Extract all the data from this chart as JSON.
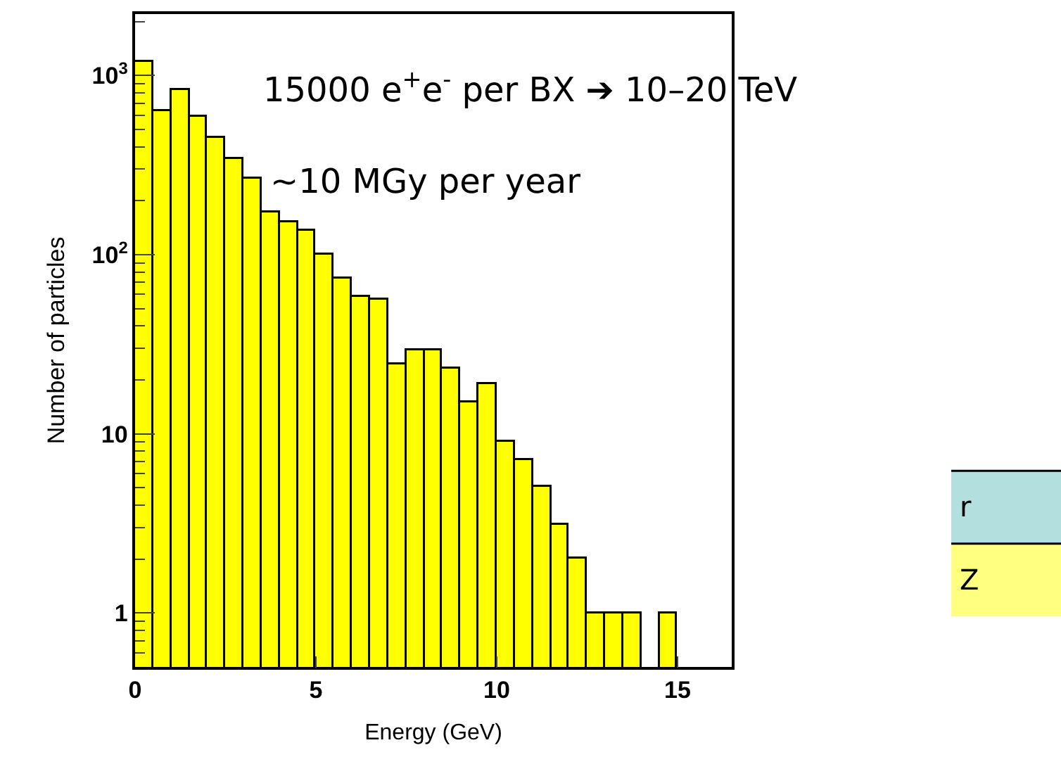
{
  "chart_data": {
    "type": "histogram",
    "xlabel": "Energy (GeV)",
    "ylabel": "Number of particles",
    "bins": [
      0,
      0.5,
      1,
      1.5,
      2,
      2.5,
      3,
      3.5,
      4,
      4.5,
      5,
      5.5,
      6,
      6.5,
      7,
      7.5,
      8,
      8.5,
      9,
      9.5,
      10,
      10.5,
      11,
      11.5,
      12,
      12.5,
      13,
      13.5,
      14,
      14.5,
      15,
      15.5,
      16,
      16.5
    ],
    "values": [
      1180,
      630,
      830,
      583,
      445,
      340,
      265,
      171,
      152,
      137,
      100,
      73,
      58,
      56,
      24.5,
      29,
      29,
      23,
      15,
      19,
      9.1,
      7.1,
      5.1,
      3.1,
      2.0,
      1,
      1,
      1,
      null,
      1,
      null,
      null,
      null
    ],
    "color": "#ffff00",
    "xlim": [
      0,
      16.5
    ],
    "xticks": [
      0,
      5,
      10,
      15
    ],
    "ylim": [
      0.5,
      2200
    ],
    "yticks": [
      1,
      10,
      {
        "value": 100,
        "label": "10$^{2}$"
      },
      {
        "value": 1000,
        "label": "10$^{3}$"
      }
    ],
    "log": "y",
    "annotations": [
      "15000 e$^{+}$e$^{-}$ per BX ➔ 10–20 TeV",
      "~10 MGy per year",
      "r",
      "Z"
    ]
  }
}
